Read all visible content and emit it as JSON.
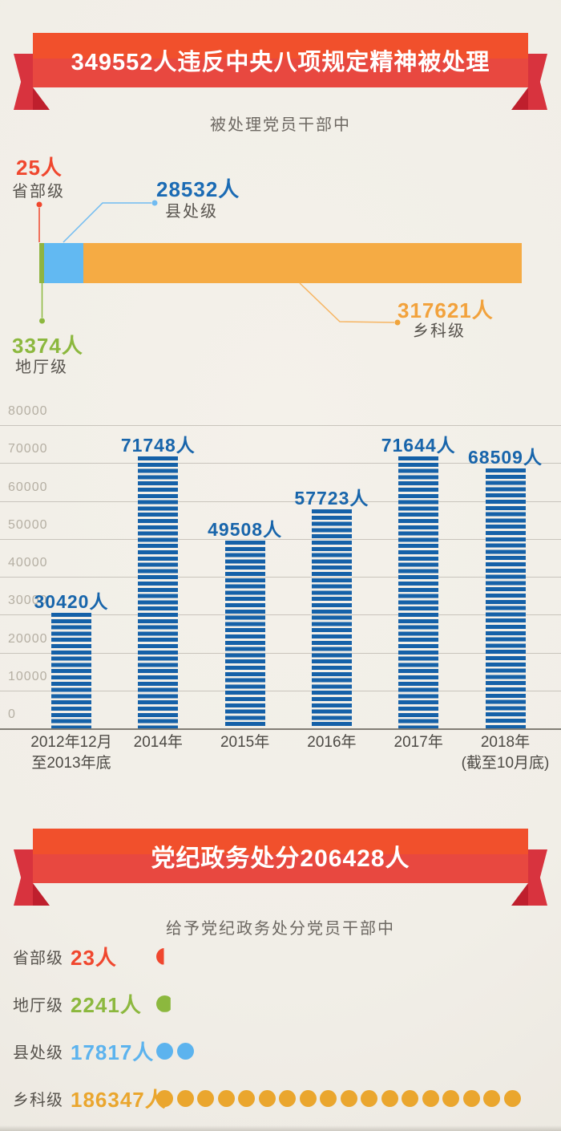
{
  "page": {
    "background": "#f1eee7"
  },
  "ribbon1": {
    "title": "349552人违反中央八项规定精神被处理"
  },
  "section1": {
    "caption": "被处理党员干部中",
    "callouts": {
      "shengbuji": {
        "value": "25人",
        "label": "省部级",
        "color": "#f0472e"
      },
      "ditingji": {
        "value": "3374人",
        "label": "地厅级",
        "color": "#8cb83e"
      },
      "xianchuji": {
        "value": "28532人",
        "label": "县处级",
        "color": "#1b6bb4"
      },
      "xiangkeji": {
        "value": "317621人",
        "label": "乡科级",
        "color": "#f2a23c"
      }
    }
  },
  "ribbon2": {
    "title": "党纪政务处分206428人"
  },
  "section2": {
    "caption": "给予党纪政务处分党员干部中",
    "rows": [
      {
        "label": "省部级",
        "value": "23人",
        "color": "#f0472e",
        "dots_full": 0,
        "dot_partial": 0.45
      },
      {
        "label": "地厅级",
        "value": "2241人",
        "color": "#8cb83e",
        "dots_full": 0,
        "dot_partial": 0.85
      },
      {
        "label": "县处级",
        "value": "17817人",
        "color": "#5cb3ee",
        "dots_full": 2,
        "dot_partial": 0
      },
      {
        "label": "乡科级",
        "value": "186347人",
        "color": "#eaa62e",
        "dots_full": 18,
        "dot_partial": 0
      }
    ]
  },
  "chart_data": [
    {
      "type": "bar",
      "style": "horizontal-stacked",
      "title": "被处理党员干部中",
      "total": 349552,
      "categories": [
        "省部级",
        "地厅级",
        "县处级",
        "乡科级"
      ],
      "values": [
        25,
        3374,
        28532,
        317621
      ],
      "colors": [
        "#f0472e",
        "#8fb441",
        "#62b9f2",
        "#f5ab44"
      ]
    },
    {
      "type": "bar",
      "categories": [
        "2012年12月至2013年底",
        "2014年",
        "2015年",
        "2016年",
        "2017年",
        "2018年(截至10月底)"
      ],
      "xtick_lines": [
        [
          "2012年12月",
          "至2013年底"
        ],
        [
          "2014年"
        ],
        [
          "2015年"
        ],
        [
          "2016年"
        ],
        [
          "2017年"
        ],
        [
          "2018年",
          "(截至10月底)"
        ]
      ],
      "values": [
        30420,
        71748,
        49508,
        57723,
        71644,
        68509
      ],
      "value_labels": [
        "30420人",
        "71748人",
        "49508人",
        "57723人",
        "71644人",
        "68509人"
      ],
      "ylim": [
        0,
        80000
      ],
      "ytick_step": 10000,
      "ytick_labels": [
        "0",
        "10000",
        "20000",
        "30000",
        "40000",
        "50000",
        "60000",
        "70000",
        "80000"
      ],
      "bar_color": "#1561a8",
      "grid": true,
      "legend": "none"
    },
    {
      "type": "bar",
      "style": "dot-pictogram",
      "title": "给予党纪政务处分党员干部中",
      "total": 206428,
      "unit_per_dot": 10000,
      "categories": [
        "省部级",
        "地厅级",
        "县处级",
        "乡科级"
      ],
      "values": [
        23,
        2241,
        17817,
        186347
      ],
      "colors": [
        "#f0472e",
        "#8cb83e",
        "#5cb3ee",
        "#eaa62e"
      ]
    }
  ]
}
